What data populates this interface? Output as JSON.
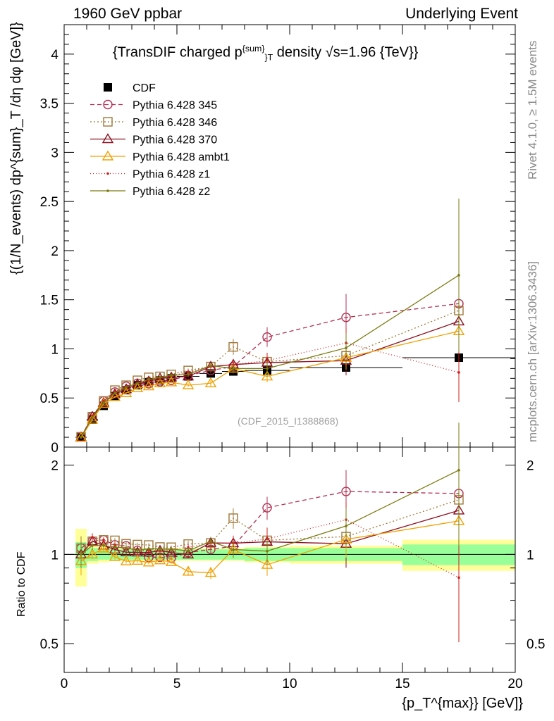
{
  "header": {
    "left": "1960 GeV ppbar",
    "right": "Underlying Event"
  },
  "title": {
    "prefix": "{TransDIF charged p",
    "sup": "{sum}",
    "sub": "}T",
    "suffix": " density √s=1.96 {TeV}}"
  },
  "watermark": "(CDF_2015_I1388868)",
  "side_labels": {
    "rivet": "Rivet 4.1.0, ≥ 1.5M events",
    "mcplots": "mcplots.cern.ch [arXiv:1306.3436]"
  },
  "axis_labels": {
    "main_ylabel": "{(1/N_events) dp^{sum}_T /dη dφ [GeV]}",
    "ratio_ylabel": "Ratio to CDF",
    "xlabel": "{p_T^{max}} [GeV]}"
  },
  "colors": {
    "cdf": "#000000",
    "p345": "#b03050",
    "p346": "#a07838",
    "p370": "#8b1020",
    "ambt1": "#f0a000",
    "z1": "#d02020",
    "z2": "#7a7a10",
    "band_inner": "#99ff99",
    "band_outer": "#ffff99"
  },
  "chart_data": {
    "type": "line",
    "title": "{TransDIF charged p^{sum}_T density √s=1.96 {TeV}}",
    "xlabel": "{p_T^{max}} [GeV]}",
    "ylabel": "{(1/N_events) dp^{sum}_T /dη dφ [GeV]}",
    "xlim": [
      0,
      20
    ],
    "ylim": [
      0,
      4.3
    ],
    "ratio_ylim": [
      0.4,
      2.3
    ],
    "xticks": [
      0,
      5,
      10,
      15,
      20
    ],
    "yticks": [
      0,
      0.5,
      1,
      1.5,
      2,
      2.5,
      3,
      3.5,
      4
    ],
    "ratio_yticks": [
      0.5,
      1,
      2
    ],
    "x": [
      0.75,
      1.25,
      1.75,
      2.25,
      2.75,
      3.25,
      3.75,
      4.25,
      4.75,
      5.5,
      6.5,
      7.5,
      9.0,
      12.5,
      17.5
    ],
    "data": {
      "name": "CDF",
      "values": [
        0.1,
        0.28,
        0.42,
        0.52,
        0.58,
        0.63,
        0.66,
        0.68,
        0.7,
        0.72,
        0.75,
        0.77,
        0.78,
        0.81,
        0.91
      ],
      "xerr_low": [
        0.25,
        0.25,
        0.25,
        0.25,
        0.25,
        0.25,
        0.25,
        0.25,
        0.25,
        0.5,
        0.5,
        0.5,
        1.0,
        2.5,
        2.5
      ],
      "xerr_high": [
        0.25,
        0.25,
        0.25,
        0.25,
        0.25,
        0.25,
        0.25,
        0.25,
        0.25,
        0.5,
        0.5,
        0.5,
        1.0,
        2.5,
        2.5
      ],
      "band_inner": [
        0.1,
        0.05,
        0.04,
        0.04,
        0.04,
        0.04,
        0.04,
        0.04,
        0.04,
        0.04,
        0.04,
        0.04,
        0.05,
        0.05,
        0.08
      ],
      "band_outer": [
        0.22,
        0.07,
        0.06,
        0.05,
        0.05,
        0.05,
        0.05,
        0.05,
        0.05,
        0.05,
        0.05,
        0.05,
        0.06,
        0.07,
        0.12
      ]
    },
    "legend_position": "top-left",
    "series": [
      {
        "name": "CDF",
        "key": "cdf",
        "style": "marker-only",
        "marker": "square-filled"
      },
      {
        "name": "Pythia 6.428 345",
        "key": "p345",
        "dash": "6,4",
        "marker": "circle-open",
        "values": [
          0.105,
          0.31,
          0.47,
          0.56,
          0.62,
          0.65,
          0.645,
          0.665,
          0.68,
          0.73,
          0.78,
          0.82,
          1.12,
          1.32,
          1.46
        ],
        "err": [
          0.01,
          0.01,
          0.01,
          0.01,
          0.01,
          0.01,
          0.01,
          0.01,
          0.01,
          0.02,
          0.03,
          0.05,
          0.1,
          0.24,
          0.45
        ]
      },
      {
        "name": "Pythia 6.428 346",
        "key": "p346",
        "dash": "2,3",
        "marker": "square-open",
        "values": [
          0.105,
          0.31,
          0.47,
          0.58,
          0.63,
          0.68,
          0.71,
          0.72,
          0.74,
          0.78,
          0.82,
          1.02,
          0.87,
          0.93,
          1.39
        ],
        "err": [
          0.01,
          0.01,
          0.01,
          0.01,
          0.01,
          0.01,
          0.01,
          0.01,
          0.01,
          0.02,
          0.03,
          0.08,
          0.08,
          0.15,
          0.4
        ]
      },
      {
        "name": "Pythia 6.428 370",
        "key": "p370",
        "dash": "",
        "marker": "triangle-open",
        "values": [
          0.1,
          0.31,
          0.45,
          0.54,
          0.59,
          0.64,
          0.67,
          0.7,
          0.71,
          0.72,
          0.82,
          0.84,
          0.86,
          0.88,
          1.28
        ],
        "err": [
          0.01,
          0.01,
          0.01,
          0.01,
          0.01,
          0.01,
          0.01,
          0.01,
          0.01,
          0.02,
          0.03,
          0.05,
          0.08,
          0.15,
          0.4
        ]
      },
      {
        "name": "Pythia 6.428 ambt1",
        "key": "ambt1",
        "dash": "",
        "marker": "triangle-open",
        "values": [
          0.095,
          0.28,
          0.44,
          0.51,
          0.55,
          0.6,
          0.62,
          0.65,
          0.66,
          0.63,
          0.65,
          0.8,
          0.72,
          0.91,
          1.18
        ],
        "err": [
          0.01,
          0.01,
          0.01,
          0.01,
          0.01,
          0.01,
          0.01,
          0.01,
          0.01,
          0.02,
          0.03,
          0.05,
          0.06,
          0.12,
          0.35
        ]
      },
      {
        "name": "Pythia 6.428 z1",
        "key": "z1",
        "dash": "1,3",
        "marker": "dot",
        "values": [
          0.1,
          0.32,
          0.47,
          0.56,
          0.61,
          0.65,
          0.68,
          0.7,
          0.73,
          0.76,
          0.82,
          0.84,
          0.88,
          1.06,
          0.76
        ],
        "err": [
          0.01,
          0.01,
          0.01,
          0.01,
          0.01,
          0.01,
          0.01,
          0.01,
          0.01,
          0.02,
          0.03,
          0.05,
          0.08,
          0.16,
          0.3
        ]
      },
      {
        "name": "Pythia 6.428 z2",
        "key": "z2",
        "dash": "",
        "marker": "dot",
        "values": [
          0.1,
          0.3,
          0.45,
          0.55,
          0.61,
          0.65,
          0.69,
          0.71,
          0.73,
          0.74,
          0.83,
          0.8,
          0.8,
          1.01,
          1.75
        ],
        "err": [
          0.01,
          0.01,
          0.01,
          0.01,
          0.01,
          0.01,
          0.01,
          0.01,
          0.01,
          0.02,
          0.03,
          0.05,
          0.08,
          0.15,
          0.78
        ]
      }
    ]
  }
}
